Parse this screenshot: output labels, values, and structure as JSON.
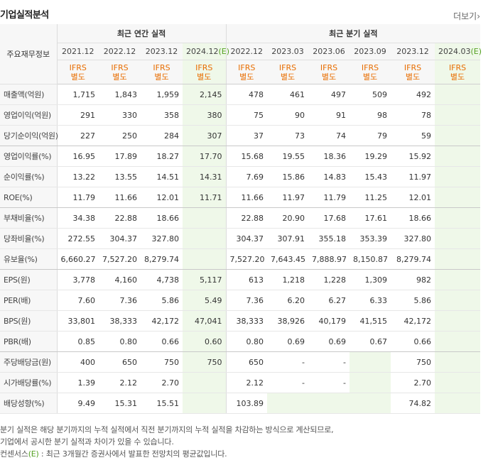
{
  "title": "기업실적분석",
  "more_label": "더보기",
  "label_header": "주요재무정보",
  "annual_header": "최근 연간 실적",
  "quarter_header": "최근 분기 실적",
  "annual_periods": [
    "2021.12",
    "2022.12",
    "2023.12",
    "2024.12"
  ],
  "quarter_periods": [
    "2022.12",
    "2023.03",
    "2023.06",
    "2023.09",
    "2023.12",
    "2024.03"
  ],
  "estimate_mark": "(E)",
  "ifrs_line1": "IFRS",
  "ifrs_line2": "별도",
  "rows": [
    {
      "label": "매출액(억원)",
      "values": [
        "1,715",
        "1,843",
        "1,959",
        "2,145",
        "478",
        "461",
        "497",
        "509",
        "492",
        ""
      ]
    },
    {
      "label": "영업이익(억원)",
      "values": [
        "291",
        "330",
        "358",
        "380",
        "75",
        "90",
        "91",
        "98",
        "78",
        ""
      ]
    },
    {
      "label": "당기순이익(억원)",
      "values": [
        "227",
        "250",
        "284",
        "307",
        "37",
        "73",
        "74",
        "79",
        "59",
        ""
      ]
    },
    {
      "label": "영업이익률(%)",
      "values": [
        "16.95",
        "17.89",
        "18.27",
        "17.70",
        "15.68",
        "19.55",
        "18.36",
        "19.29",
        "15.92",
        ""
      ]
    },
    {
      "label": "순이익률(%)",
      "values": [
        "13.22",
        "13.55",
        "14.51",
        "14.31",
        "7.69",
        "15.86",
        "14.83",
        "15.43",
        "11.97",
        ""
      ]
    },
    {
      "label": "ROE(%)",
      "values": [
        "11.79",
        "11.66",
        "12.01",
        "11.71",
        "11.66",
        "11.97",
        "11.79",
        "11.25",
        "12.01",
        ""
      ]
    },
    {
      "label": "부채비율(%)",
      "values": [
        "34.38",
        "22.88",
        "18.66",
        "",
        "22.88",
        "20.90",
        "17.68",
        "17.61",
        "18.66",
        ""
      ]
    },
    {
      "label": "당좌비율(%)",
      "values": [
        "272.55",
        "304.37",
        "327.80",
        "",
        "304.37",
        "307.91",
        "355.18",
        "353.39",
        "327.80",
        ""
      ]
    },
    {
      "label": "유보율(%)",
      "values": [
        "6,660.27",
        "7,527.20",
        "8,279.74",
        "",
        "7,527.20",
        "7,643.45",
        "7,888.97",
        "8,150.87",
        "8,279.74",
        ""
      ]
    },
    {
      "label": "EPS(원)",
      "values": [
        "3,778",
        "4,160",
        "4,738",
        "5,117",
        "613",
        "1,218",
        "1,228",
        "1,309",
        "982",
        ""
      ]
    },
    {
      "label": "PER(배)",
      "values": [
        "7.60",
        "7.36",
        "5.86",
        "5.49",
        "7.36",
        "6.20",
        "6.27",
        "6.33",
        "5.86",
        ""
      ]
    },
    {
      "label": "BPS(원)",
      "values": [
        "33,801",
        "38,333",
        "42,172",
        "47,041",
        "38,333",
        "38,926",
        "40,179",
        "41,515",
        "42,172",
        ""
      ]
    },
    {
      "label": "PBR(배)",
      "values": [
        "0.85",
        "0.80",
        "0.66",
        "0.60",
        "0.80",
        "0.69",
        "0.69",
        "0.67",
        "0.66",
        ""
      ]
    },
    {
      "label": "주당배당금(원)",
      "values": [
        "400",
        "650",
        "750",
        "750",
        "650",
        "-",
        "-",
        "",
        "750",
        ""
      ]
    },
    {
      "label": "시가배당률(%)",
      "values": [
        "1.39",
        "2.12",
        "2.70",
        "",
        "2.12",
        "-",
        "-",
        "",
        "2.70",
        ""
      ]
    },
    {
      "label": "배당성향(%)",
      "values": [
        "9.49",
        "15.31",
        "15.51",
        "",
        "103.89",
        "",
        "",
        "",
        "74.82",
        ""
      ]
    }
  ],
  "notes": [
    "분기 실적은 해당 분기까지의 누적 실적에서 직전 분기까지의 누적 실적을 차감하는 방식으로 계산되므로,",
    "기업에서 공시한 분기 실적과 차이가 있을 수 있습니다.",
    "컨센서스",
    ": 최근 3개월간 증권사에서 발표한 전망치의 평균값입니다."
  ],
  "colors": {
    "accent_orange": "#e86d00",
    "estimate_green": "#54a022",
    "estimate_bg": "#eff8e9"
  }
}
